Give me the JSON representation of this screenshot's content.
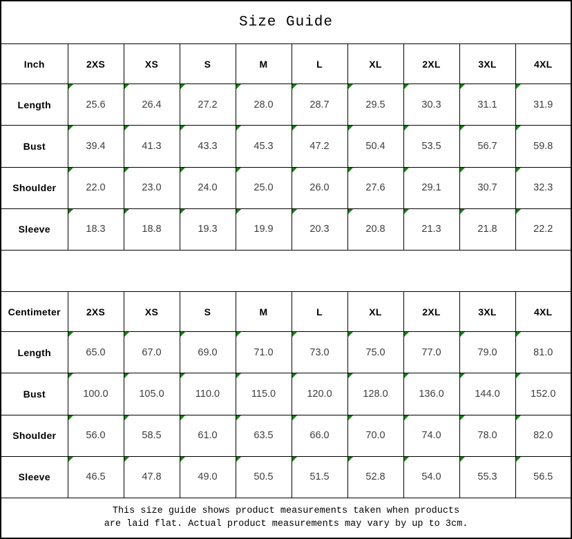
{
  "title": "Size Guide",
  "colors": {
    "flag_green": "#1a7d1a",
    "grid": "#000000",
    "value_text": "#3d3d3d"
  },
  "tables": [
    {
      "unit_label": "Inch",
      "sizes": [
        "2XS",
        "XS",
        "S",
        "M",
        "L",
        "XL",
        "2XL",
        "3XL",
        "4XL"
      ],
      "rows": [
        {
          "label": "Length",
          "values": [
            "25.6",
            "26.4",
            "27.2",
            "28.0",
            "28.7",
            "29.5",
            "30.3",
            "31.1",
            "31.9"
          ]
        },
        {
          "label": "Bust",
          "values": [
            "39.4",
            "41.3",
            "43.3",
            "45.3",
            "47.2",
            "50.4",
            "53.5",
            "56.7",
            "59.8"
          ]
        },
        {
          "label": "Shoulder",
          "values": [
            "22.0",
            "23.0",
            "24.0",
            "25.0",
            "26.0",
            "27.6",
            "29.1",
            "30.7",
            "32.3"
          ]
        },
        {
          "label": "Sleeve",
          "values": [
            "18.3",
            "18.8",
            "19.3",
            "19.9",
            "20.3",
            "20.8",
            "21.3",
            "21.8",
            "22.2"
          ]
        }
      ]
    },
    {
      "unit_label": "Centimeter",
      "sizes": [
        "2XS",
        "XS",
        "S",
        "M",
        "L",
        "XL",
        "2XL",
        "3XL",
        "4XL"
      ],
      "rows": [
        {
          "label": "Length",
          "values": [
            "65.0",
            "67.0",
            "69.0",
            "71.0",
            "73.0",
            "75.0",
            "77.0",
            "79.0",
            "81.0"
          ]
        },
        {
          "label": "Bust",
          "values": [
            "100.0",
            "105.0",
            "110.0",
            "115.0",
            "120.0",
            "128.0",
            "136.0",
            "144.0",
            "152.0"
          ]
        },
        {
          "label": "Shoulder",
          "values": [
            "56.0",
            "58.5",
            "61.0",
            "63.5",
            "66.0",
            "70.0",
            "74.0",
            "78.0",
            "82.0"
          ]
        },
        {
          "label": "Sleeve",
          "values": [
            "46.5",
            "47.8",
            "49.0",
            "50.5",
            "51.5",
            "52.8",
            "54.0",
            "55.3",
            "56.5"
          ]
        }
      ]
    }
  ],
  "footer": {
    "line1": "This size guide shows product measurements taken when products",
    "line2": "are laid flat. Actual product measurements may vary by up to 3cm."
  }
}
